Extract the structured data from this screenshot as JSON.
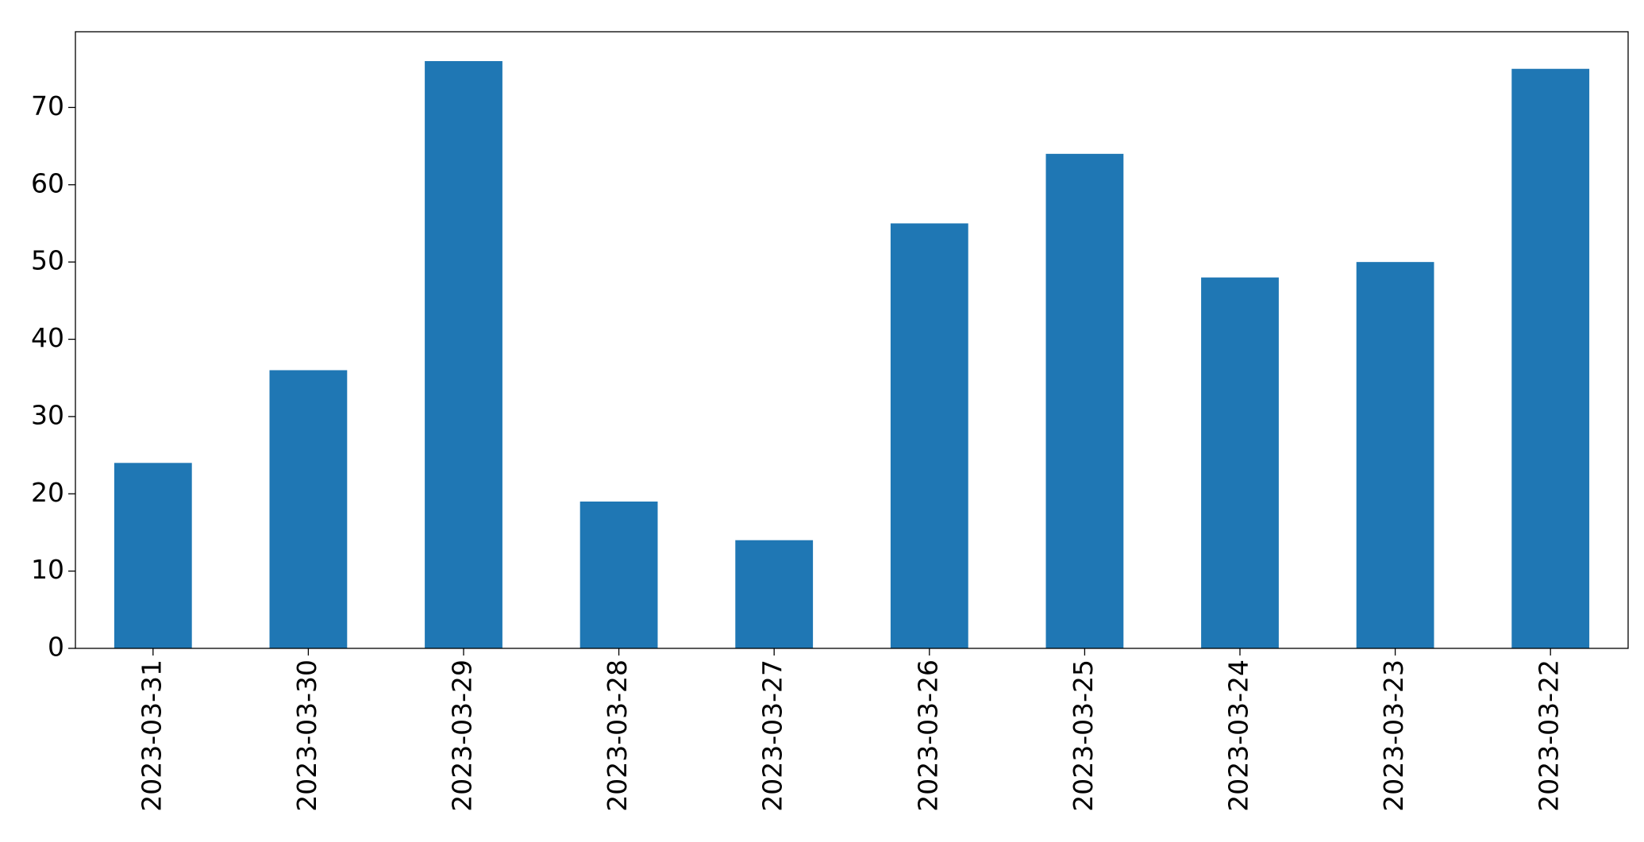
{
  "chart_data": {
    "type": "bar",
    "categories": [
      "2023-03-31",
      "2023-03-30",
      "2023-03-29",
      "2023-03-28",
      "2023-03-27",
      "2023-03-26",
      "2023-03-25",
      "2023-03-24",
      "2023-03-23",
      "2023-03-22"
    ],
    "values": [
      24,
      36,
      76,
      19,
      14,
      55,
      64,
      48,
      50,
      75
    ],
    "color": "#1f77b4",
    "ylim": [
      0,
      79.8
    ],
    "yticks": [
      0,
      10,
      20,
      30,
      40,
      50,
      60,
      70
    ],
    "grid": false
  }
}
